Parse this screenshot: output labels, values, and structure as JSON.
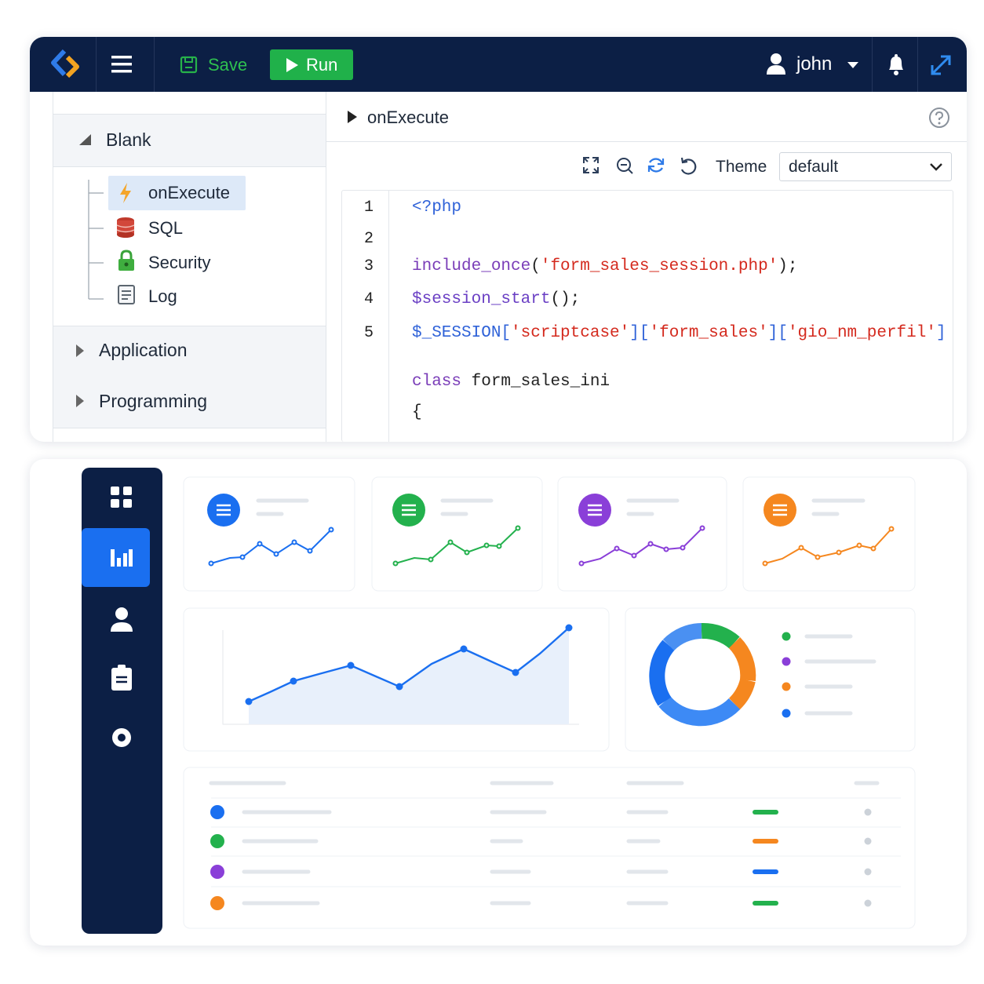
{
  "header": {
    "save": "Save",
    "run": "Run",
    "user": "john"
  },
  "tree": {
    "groups": [
      {
        "label": "Blank",
        "items": [
          "onExecute",
          "SQL",
          "Security",
          "Log"
        ]
      },
      {
        "label": "Application"
      },
      {
        "label": "Programming"
      }
    ]
  },
  "editor": {
    "event": "onExecute",
    "theme_label": "Theme",
    "theme": "default",
    "lines": [
      {
        "number": 1,
        "tokens": [
          {
            "text": "<?php",
            "color": "#2f62d8"
          }
        ]
      },
      {
        "number": 2
      },
      {
        "number": 3,
        "tokens": [
          {
            "text": "include_once",
            "color": "#7a3db8"
          },
          {
            "text": "(",
            "color": "#222222"
          },
          {
            "text": "'form_sales_session.php'",
            "color": "#d42a1e"
          },
          {
            "text": ");",
            "color": "#222222"
          }
        ]
      },
      {
        "number": 4,
        "tokens": [
          {
            "text": "$session_start",
            "color": "#6a3fc4"
          },
          {
            "text": "();",
            "color": "#222222"
          }
        ]
      },
      {
        "number": 5,
        "tokens": [
          {
            "text": "$_SESSION",
            "color": "#2f62d8"
          },
          {
            "text": "[",
            "color": "#2f62d8"
          },
          {
            "text": "'scriptcase'",
            "color": "#d42a1e"
          },
          {
            "text": "][",
            "color": "#2f62d8"
          },
          {
            "text": "'form_sales'",
            "color": "#d42a1e"
          },
          {
            "text": "][",
            "color": "#2f62d8"
          },
          {
            "text": "'gio_nm_perfil'",
            "color": "#d42a1e"
          },
          {
            "text": "]",
            "color": "#2f62d8"
          }
        ]
      },
      {
        "tokens": [
          {
            "text": "class ",
            "color": "#7a3db8"
          },
          {
            "text": "form_sales_ini",
            "color": "#222222"
          }
        ]
      },
      {
        "tokens": [
          {
            "text": "{",
            "color": "#222222"
          }
        ]
      }
    ]
  }
}
